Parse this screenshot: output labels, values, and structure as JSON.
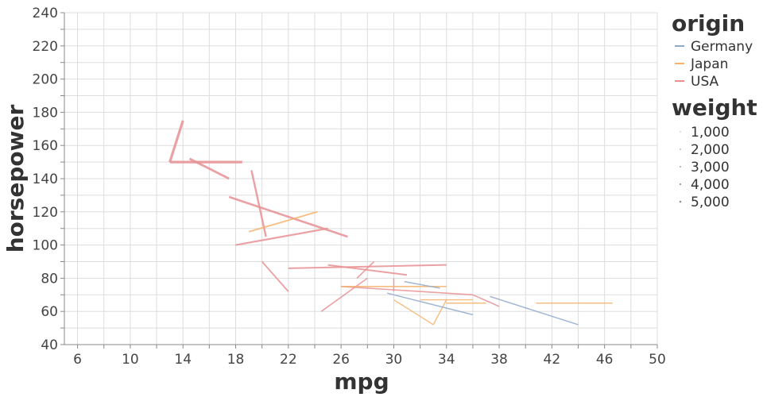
{
  "chart_data": {
    "type": "line",
    "xlabel": "mpg",
    "ylabel": "horsepower",
    "xlim": [
      5,
      50
    ],
    "ylim": [
      40,
      240
    ],
    "x_ticks": [
      6,
      10,
      14,
      18,
      22,
      26,
      30,
      34,
      38,
      42,
      46,
      50
    ],
    "y_ticks": [
      40,
      60,
      80,
      100,
      120,
      140,
      160,
      180,
      200,
      220,
      240
    ],
    "grid": true,
    "legend_position": "right",
    "color_legend": {
      "title": "origin",
      "entries": [
        {
          "name": "Germany",
          "color": "#8fa9cb"
        },
        {
          "name": "Japan",
          "color": "#f4b26b"
        },
        {
          "name": "USA",
          "color": "#e79193"
        }
      ]
    },
    "size_legend": {
      "title": "weight",
      "entries": [
        "1,000",
        "2,000",
        "3,000",
        "4,000",
        "5,000"
      ]
    },
    "series": [
      {
        "name": "USA",
        "color": "#e79193",
        "segments": [
          {
            "x1": 14,
            "y1": 175,
            "x2": 13,
            "y2": 150,
            "w": 3.2
          },
          {
            "x1": 13,
            "y1": 150,
            "x2": 18.5,
            "y2": 150,
            "w": 3.2
          },
          {
            "x1": 14.5,
            "y1": 152,
            "x2": 17.5,
            "y2": 140,
            "w": 2.8
          },
          {
            "x1": 19.2,
            "y1": 145,
            "x2": 20.3,
            "y2": 105,
            "w": 2.4
          },
          {
            "x1": 17.5,
            "y1": 129,
            "x2": 26.5,
            "y2": 105,
            "w": 2.6
          },
          {
            "x1": 18,
            "y1": 100,
            "x2": 25,
            "y2": 110,
            "w": 2.2
          },
          {
            "x1": 22,
            "y1": 86,
            "x2": 34,
            "y2": 88,
            "w": 2.0
          },
          {
            "x1": 25,
            "y1": 88,
            "x2": 31,
            "y2": 82,
            "w": 2.0
          },
          {
            "x1": 20,
            "y1": 90,
            "x2": 22,
            "y2": 72,
            "w": 1.8
          },
          {
            "x1": 24.5,
            "y1": 60,
            "x2": 28,
            "y2": 80,
            "w": 1.6
          },
          {
            "x1": 27.2,
            "y1": 80,
            "x2": 28.5,
            "y2": 90,
            "w": 1.6
          },
          {
            "x1": 26,
            "y1": 75,
            "x2": 36,
            "y2": 70,
            "w": 1.6
          },
          {
            "x1": 36,
            "y1": 70,
            "x2": 38,
            "y2": 63,
            "w": 1.6
          },
          {
            "x1": 30,
            "y1": 72,
            "x2": 30,
            "y2": 80,
            "w": 1.5
          }
        ]
      },
      {
        "name": "Japan",
        "color": "#f4b26b",
        "segments": [
          {
            "x1": 19,
            "y1": 108,
            "x2": 24.2,
            "y2": 120,
            "w": 1.8
          },
          {
            "x1": 26,
            "y1": 75,
            "x2": 34,
            "y2": 75,
            "w": 1.6
          },
          {
            "x1": 30,
            "y1": 67,
            "x2": 33,
            "y2": 52,
            "w": 1.4
          },
          {
            "x1": 33,
            "y1": 52,
            "x2": 34,
            "y2": 67,
            "w": 1.4
          },
          {
            "x1": 34,
            "y1": 65,
            "x2": 37,
            "y2": 65,
            "w": 1.4
          },
          {
            "x1": 32,
            "y1": 67,
            "x2": 36,
            "y2": 67,
            "w": 1.4
          },
          {
            "x1": 40.8,
            "y1": 65,
            "x2": 46.6,
            "y2": 65,
            "w": 1.4
          }
        ]
      },
      {
        "name": "Germany",
        "color": "#8fa9cb",
        "segments": [
          {
            "x1": 29.5,
            "y1": 71,
            "x2": 36,
            "y2": 58,
            "w": 1.5
          },
          {
            "x1": 30.8,
            "y1": 78,
            "x2": 33.5,
            "y2": 74,
            "w": 1.5
          },
          {
            "x1": 37.3,
            "y1": 69,
            "x2": 44,
            "y2": 52,
            "w": 1.5
          }
        ]
      }
    ]
  }
}
